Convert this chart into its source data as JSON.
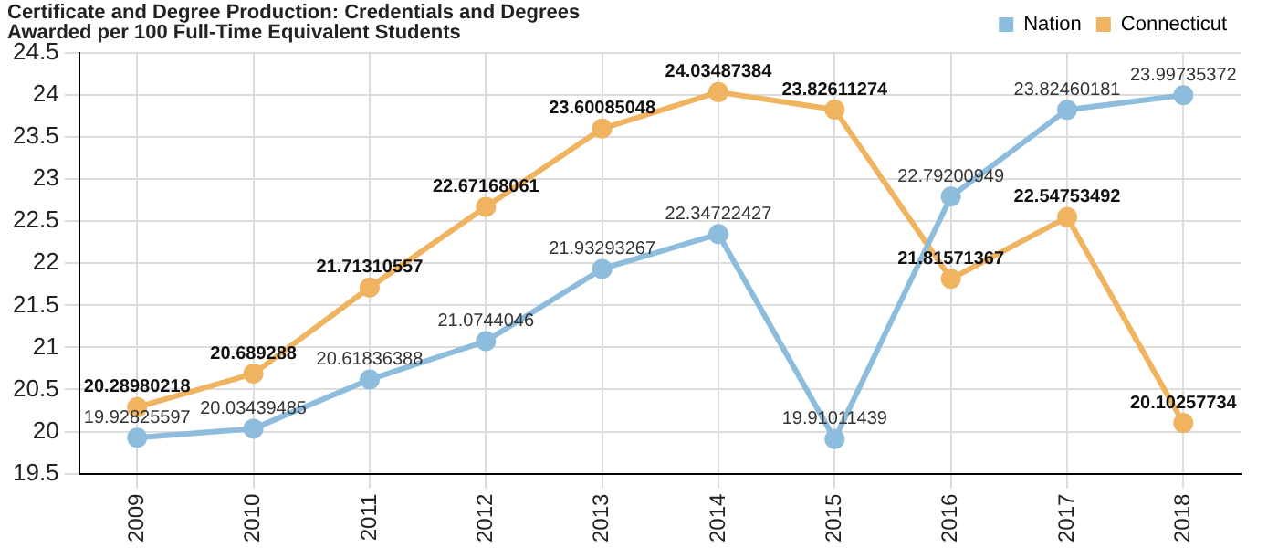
{
  "chart_data": {
    "type": "line",
    "title": "Certificate and Degree Production: Credentials and Degrees Awarded per 100 Full-Time Equivalent Students",
    "categories": [
      "2009",
      "2010",
      "2011",
      "2012",
      "2013",
      "2014",
      "2015",
      "2016",
      "2017",
      "2018"
    ],
    "series": [
      {
        "name": "Nation",
        "color": "#8dbcdc",
        "values": [
          19.92825597,
          20.03439485,
          20.61836388,
          21.0744046,
          21.93293267,
          22.34722427,
          19.91011439,
          22.79200949,
          23.82460181,
          23.99735372
        ]
      },
      {
        "name": "Connecticut",
        "color": "#f0b460",
        "values": [
          20.28980218,
          20.689288,
          21.71310557,
          22.67168061,
          23.60085048,
          24.03487384,
          23.82611274,
          21.81571367,
          22.54753492,
          20.10257734
        ]
      }
    ],
    "ylim": [
      19.5,
      24.5
    ],
    "yticks": [
      19.5,
      20,
      20.5,
      21,
      21.5,
      22,
      22.5,
      23,
      23.5,
      24,
      24.5
    ],
    "grid": true,
    "legend": "top right",
    "marker": "circle",
    "line_style": "solid",
    "data_labels": true
  }
}
